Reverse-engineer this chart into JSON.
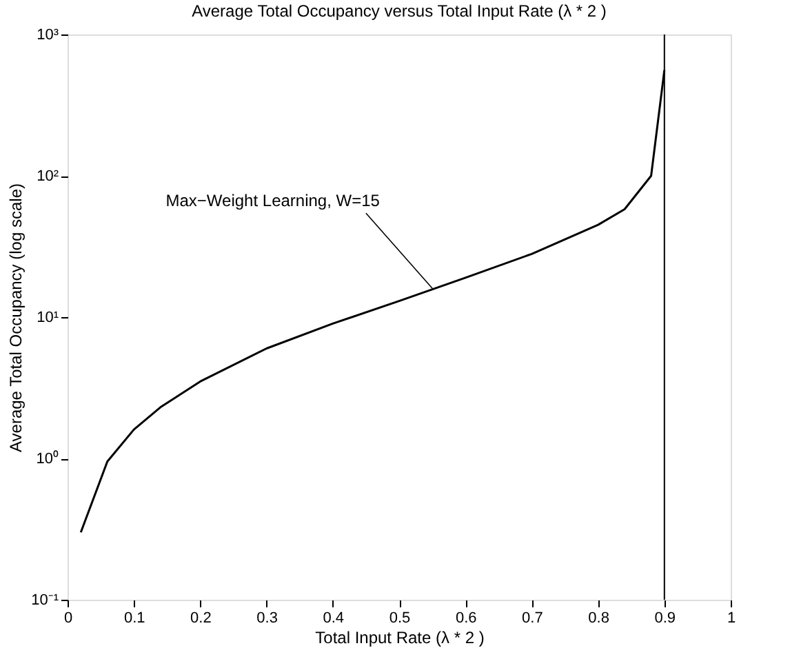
{
  "chart_data": {
    "type": "line",
    "title": "Average Total Occupancy versus Total Input Rate (λ * 2 )",
    "xlabel": "Total Input Rate (λ * 2 )",
    "ylabel": "Average Total Occupancy (log scale)",
    "log": "y",
    "grid": false,
    "line_style": "solid",
    "marker": "none",
    "x": [
      0.02,
      0.06,
      0.1,
      0.14,
      0.2,
      0.3,
      0.4,
      0.5,
      0.6,
      0.7,
      0.8,
      0.84,
      0.88,
      0.9
    ],
    "series": [
      {
        "color": "#000000",
        "values": [
          0.3,
          0.95,
          1.6,
          2.3,
          3.5,
          6,
          9,
          13,
          19,
          28,
          45,
          58,
          100,
          560
        ]
      }
    ],
    "xlim": [
      0,
      1
    ],
    "xticks": [
      0,
      0.1,
      0.2,
      0.3,
      0.4,
      0.5,
      0.6,
      0.7,
      0.8,
      0.9,
      1
    ],
    "ylim": [
      0.1,
      1000
    ],
    "yticks": [
      {
        "value": 0.1,
        "label": "10⁻¹"
      },
      {
        "value": 1,
        "label": "10⁰"
      },
      {
        "value": 10,
        "label": "10¹"
      },
      {
        "value": 100,
        "label": "10²"
      },
      {
        "value": 1000,
        "label": "10³"
      }
    ],
    "ref_lines": [
      {
        "axis": "x",
        "value": 0.9,
        "label": null,
        "color": "#000000"
      }
    ],
    "annotations": [
      {
        "text": "Max−Weight Learning, W=15",
        "x": 0.55,
        "y": 16
      }
    ]
  }
}
